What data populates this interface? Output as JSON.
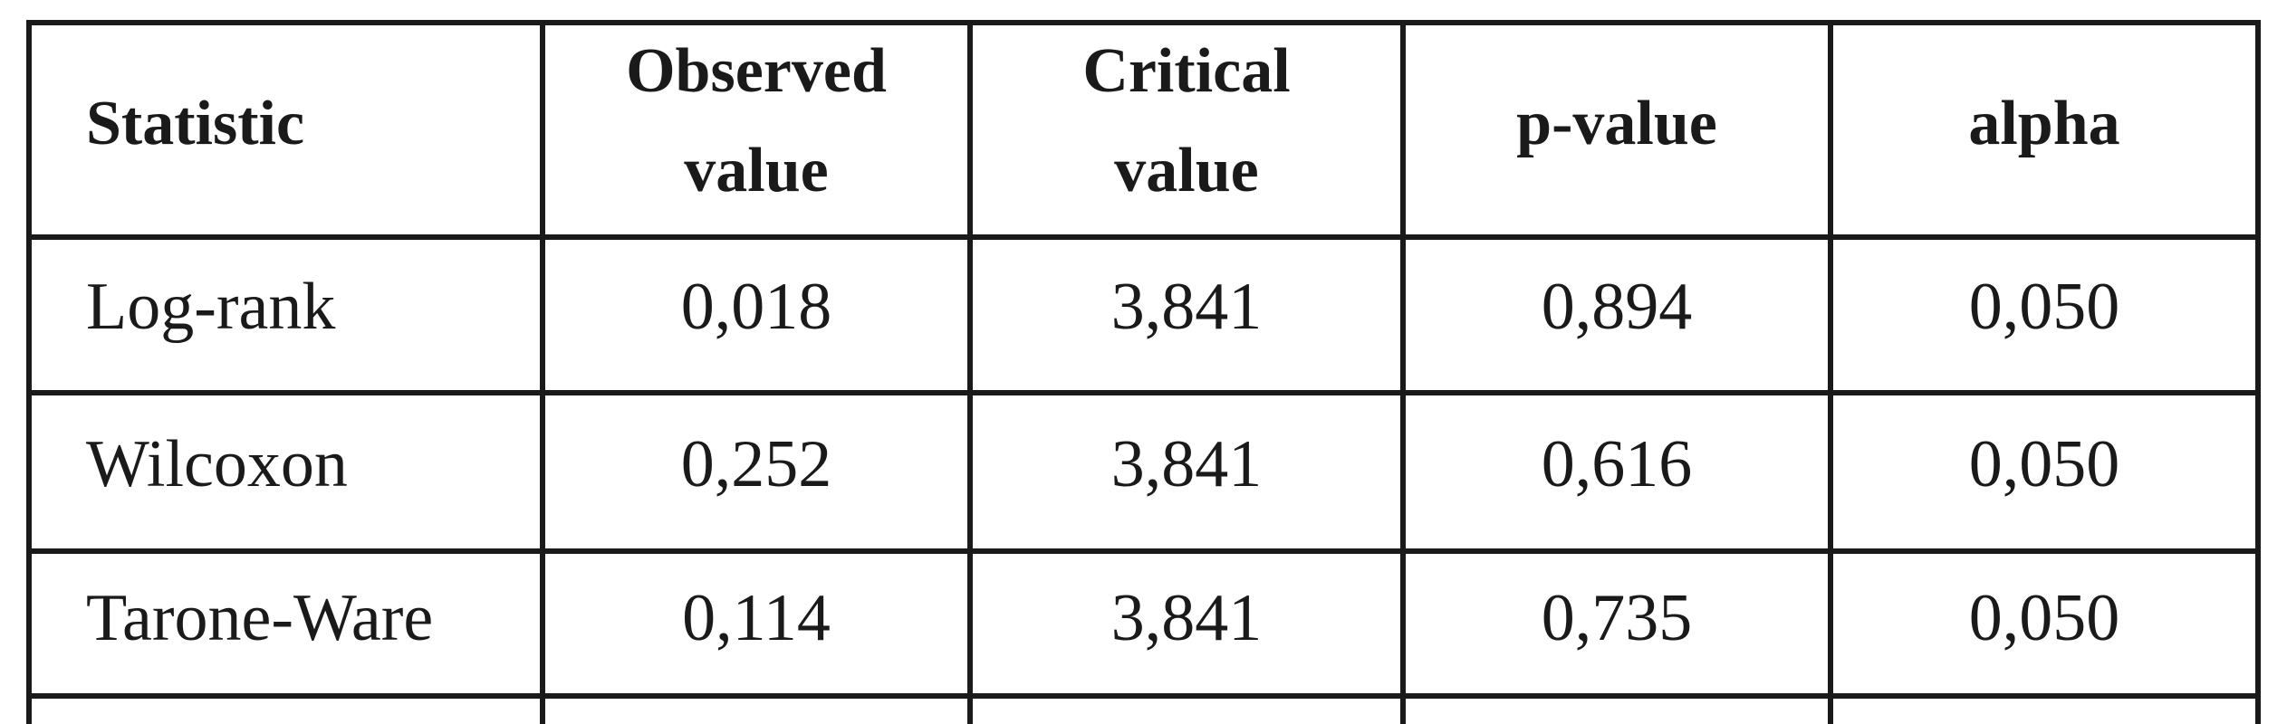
{
  "table": {
    "header": [
      [
        "Statistic"
      ],
      [
        "Observed",
        "value"
      ],
      [
        "Critical",
        "value"
      ],
      [
        "p-value"
      ],
      [
        "alpha"
      ]
    ],
    "rows": [
      [
        "Log-rank",
        "0,018",
        "3,841",
        "0,894",
        "0,050"
      ],
      [
        "Wilcoxon",
        "0,252",
        "3,841",
        "0,616",
        "0,050"
      ],
      [
        "Tarone-Ware",
        "0,114",
        "3,841",
        "0,735",
        "0,050"
      ]
    ]
  }
}
